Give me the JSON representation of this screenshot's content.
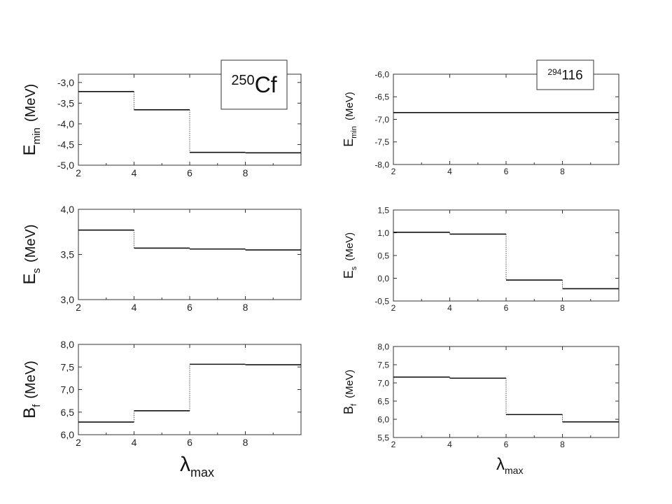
{
  "chart_data": [
    {
      "type": "line",
      "nucleus": {
        "mass": "250",
        "symbol": "Cf"
      },
      "ylabel": {
        "main": "E",
        "sub": "min",
        "unit": "(MeV)"
      },
      "xticks": [
        "2",
        "4",
        "6",
        "8"
      ],
      "yticks": [
        "-3,0",
        "-3,5",
        "-4,0",
        "-4,5",
        "-5,0"
      ],
      "xlim": [
        2,
        10
      ],
      "ylim": [
        -5.0,
        -2.8
      ],
      "steps": [
        {
          "x0": 2,
          "x1": 4,
          "y": -3.22
        },
        {
          "x0": 4,
          "x1": 6,
          "y": -3.66
        },
        {
          "x0": 6,
          "x1": 8,
          "y": -4.69
        },
        {
          "x0": 8,
          "x1": 10,
          "y": -4.7
        }
      ]
    },
    {
      "type": "line",
      "nucleus": {
        "mass": "294",
        "symbol": "116"
      },
      "ylabel": {
        "main": "E",
        "sub": "min",
        "unit": "(MeV)"
      },
      "xticks": [
        "2",
        "4",
        "6",
        "8"
      ],
      "yticks": [
        "-6,0",
        "-6,5",
        "-7,0",
        "-7,5",
        "-8,0"
      ],
      "xlim": [
        2,
        10
      ],
      "ylim": [
        -8.0,
        -6.0
      ],
      "steps": [
        {
          "x0": 2,
          "x1": 4,
          "y": -6.85
        },
        {
          "x0": 4,
          "x1": 6,
          "y": -6.85
        },
        {
          "x0": 6,
          "x1": 8,
          "y": -6.85
        },
        {
          "x0": 8,
          "x1": 10,
          "y": -6.85
        }
      ]
    },
    {
      "type": "line",
      "ylabel": {
        "main": "E",
        "sub": "s",
        "unit": "(MeV)"
      },
      "xticks": [
        "2",
        "4",
        "6",
        "8"
      ],
      "yticks": [
        "4,0",
        "3,5",
        "3,0"
      ],
      "xlim": [
        2,
        10
      ],
      "ylim": [
        3.0,
        4.0
      ],
      "steps": [
        {
          "x0": 2,
          "x1": 4,
          "y": 3.77
        },
        {
          "x0": 4,
          "x1": 6,
          "y": 3.57
        },
        {
          "x0": 6,
          "x1": 8,
          "y": 3.56
        },
        {
          "x0": 8,
          "x1": 10,
          "y": 3.55
        }
      ]
    },
    {
      "type": "line",
      "ylabel": {
        "main": "E",
        "sub": "s",
        "unit": "(MeV)"
      },
      "xticks": [
        "2",
        "4",
        "6",
        "8"
      ],
      "yticks": [
        "1,5",
        "1,0",
        "0,5",
        "0,0",
        "-0,5"
      ],
      "xlim": [
        2,
        10
      ],
      "ylim": [
        -0.5,
        1.5
      ],
      "steps": [
        {
          "x0": 2,
          "x1": 4,
          "y": 1.01
        },
        {
          "x0": 4,
          "x1": 6,
          "y": 0.97
        },
        {
          "x0": 6,
          "x1": 8,
          "y": -0.04
        },
        {
          "x0": 8,
          "x1": 10,
          "y": -0.23
        }
      ]
    },
    {
      "type": "line",
      "ylabel": {
        "main": "B",
        "sub": "f",
        "unit": "(MeV)"
      },
      "xlabel": {
        "main": "λ",
        "sub": "max"
      },
      "xticks": [
        "2",
        "4",
        "6",
        "8"
      ],
      "yticks": [
        "8,0",
        "7,5",
        "7,0",
        "6,5",
        "6,0"
      ],
      "xlim": [
        2,
        10
      ],
      "ylim": [
        6.0,
        8.0
      ],
      "steps": [
        {
          "x0": 2,
          "x1": 4,
          "y": 6.28
        },
        {
          "x0": 4,
          "x1": 6,
          "y": 6.53
        },
        {
          "x0": 6,
          "x1": 8,
          "y": 7.56
        },
        {
          "x0": 8,
          "x1": 10,
          "y": 7.55
        }
      ]
    },
    {
      "type": "line",
      "ylabel": {
        "main": "B",
        "sub": "f",
        "unit": "(MeV)"
      },
      "xlabel": {
        "main": "λ",
        "sub": "max"
      },
      "xticks": [
        "2",
        "4",
        "6",
        "8"
      ],
      "yticks": [
        "8,0",
        "7,5",
        "7,0",
        "6,5",
        "6,0",
        "5,5"
      ],
      "xlim": [
        2,
        10
      ],
      "ylim": [
        5.5,
        8.0
      ],
      "steps": [
        {
          "x0": 2,
          "x1": 4,
          "y": 7.16
        },
        {
          "x0": 4,
          "x1": 6,
          "y": 7.13
        },
        {
          "x0": 6,
          "x1": 8,
          "y": 6.13
        },
        {
          "x0": 8,
          "x1": 10,
          "y": 5.93
        }
      ]
    }
  ]
}
